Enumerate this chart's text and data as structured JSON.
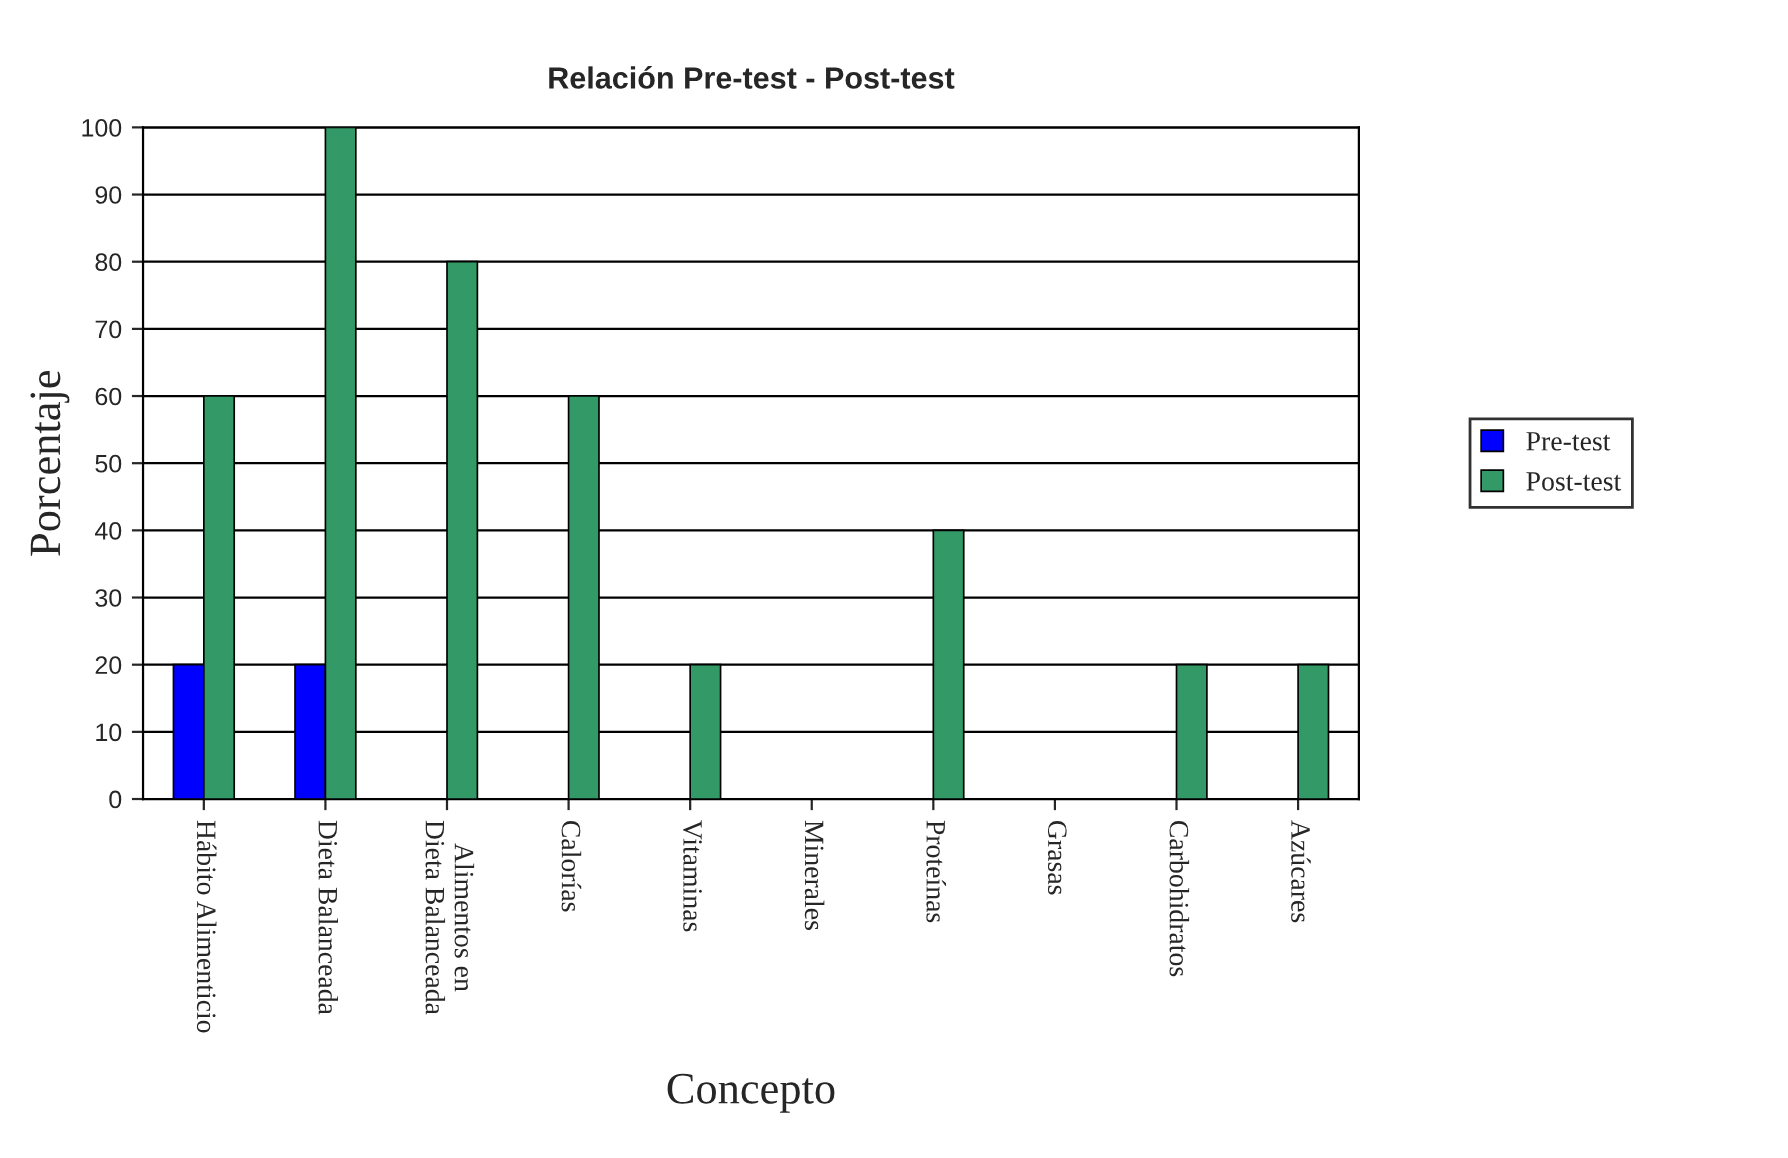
{
  "chart_data": {
    "type": "bar",
    "title": "Relación Pre-test - Post-test",
    "xlabel": "Concepto",
    "ylabel": "Porcentaje",
    "categories": [
      "Hábito Alimenticio",
      "Dieta Balanceada",
      "Alimentos en\nDieta Balanceada",
      "Calorías",
      "Vitaminas",
      "Minerales",
      "Proteínas",
      "Grasas",
      "Carbohidratos",
      "Azúcares"
    ],
    "series": [
      {
        "name": "Pre-test",
        "color": "#0000ff",
        "values": [
          20,
          20,
          0,
          0,
          0,
          0,
          0,
          0,
          0,
          0
        ]
      },
      {
        "name": "Post-test",
        "color": "#339966",
        "values": [
          60,
          100,
          80,
          60,
          20,
          0,
          40,
          0,
          20,
          20
        ]
      }
    ],
    "ylim": [
      0,
      100
    ],
    "yticks": [
      0,
      10,
      20,
      30,
      40,
      50,
      60,
      70,
      80,
      90,
      100
    ],
    "grid": "y",
    "legend": "right"
  }
}
